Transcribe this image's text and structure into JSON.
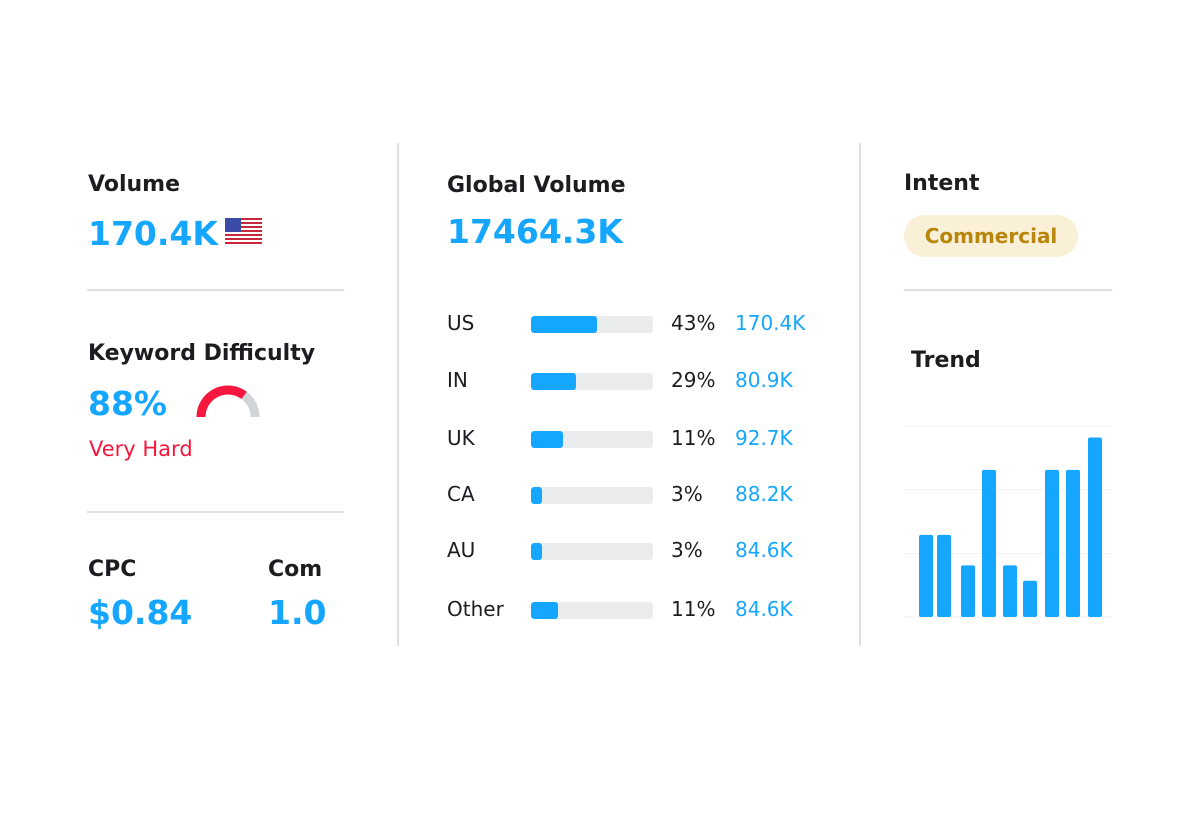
{
  "volume": {
    "label": "Volume",
    "value": "170.4K",
    "flag_icon": "us-flag-icon"
  },
  "difficulty": {
    "label": "Keyword Difficulty",
    "value": "88%",
    "level": 88,
    "rating": "Very Hard",
    "color": "#f5173d"
  },
  "cpc": {
    "label": "CPC",
    "value": "$0.84"
  },
  "com": {
    "label": "Com",
    "value": "1.0"
  },
  "global": {
    "label": "Global Volume",
    "value": "17464.3K",
    "countries": [
      {
        "name": "US",
        "pct": "43%",
        "volume": "170.4K",
        "fill": 0.54
      },
      {
        "name": "IN",
        "pct": "29%",
        "volume": "80.9K",
        "fill": 0.37
      },
      {
        "name": "UK",
        "pct": "11%",
        "volume": "92.7K",
        "fill": 0.26
      },
      {
        "name": "CA",
        "pct": "3%",
        "volume": "88.2K",
        "fill": 0.09
      },
      {
        "name": "AU",
        "pct": "3%",
        "volume": "84.6K",
        "fill": 0.09
      },
      {
        "name": "Other",
        "pct": "11%",
        "volume": "84.6K",
        "fill": 0.22
      }
    ]
  },
  "intent": {
    "label": "Intent",
    "value": "Commercial"
  },
  "trend": {
    "label": "Trend"
  },
  "chart_data": {
    "type": "bar",
    "values": [
      0.43,
      0.43,
      0.27,
      0.77,
      0.27,
      0.19,
      0.77,
      0.77,
      0.94
    ],
    "ylim": [
      0,
      1
    ],
    "grid": true,
    "color": "#15a7ff"
  },
  "colors": {
    "accent": "#15a7ff",
    "danger": "#f5173d",
    "badge_bg": "#faf0d8",
    "badge_text": "#b8860b"
  }
}
